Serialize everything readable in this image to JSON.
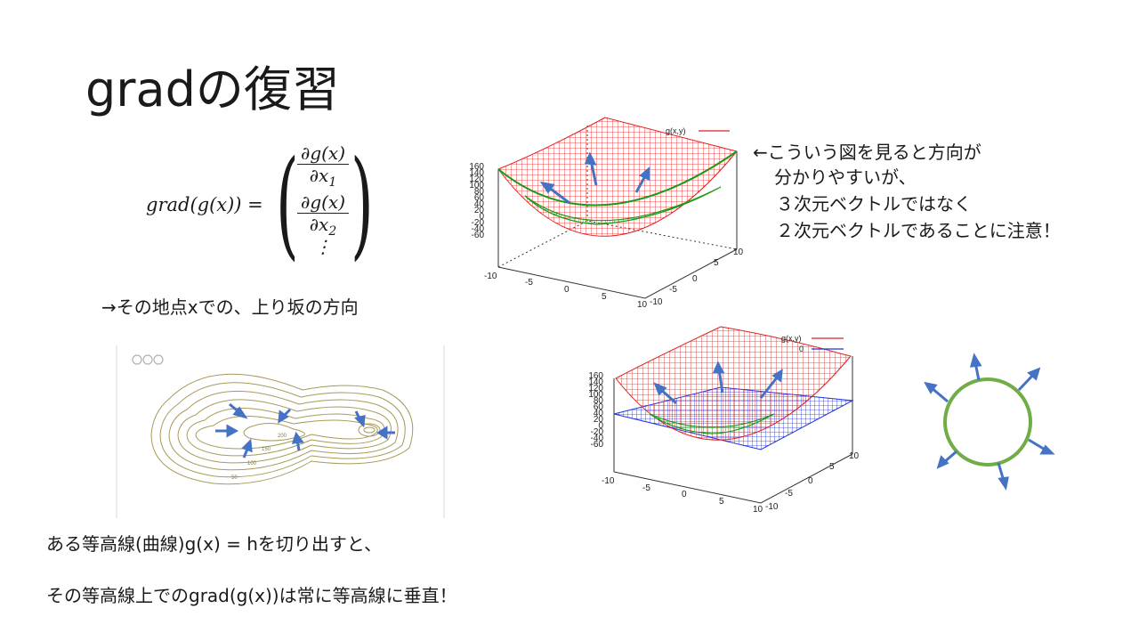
{
  "title": "gradの復習",
  "formula": {
    "lhs": "grad(g(x)) =",
    "row1_num": "∂g(x)",
    "row1_den": "∂x",
    "row1_sub": "1",
    "row2_num": "∂g(x)",
    "row2_den": "∂x",
    "row2_sub": "2",
    "row3": "⋮"
  },
  "arrow_note": "→その地点xでの、上り坂の方向",
  "side_note": [
    "←こういう図を見ると方向が",
    "分かりやすいが、",
    "３次元ベクトルではなく",
    "２次元ベクトルであることに注意！"
  ],
  "line1": "ある等高線(曲線)g(x) = hを切り出すと、",
  "line2": "その等高線上でのgrad(g(x))は常に等高線に垂直！",
  "plot_top": {
    "legend": "g(x,y)",
    "z_ticks": [
      "160",
      "140",
      "120",
      "100",
      "80",
      "60",
      "40",
      "20",
      "0",
      "-20",
      "-40",
      "-60"
    ],
    "x_ticks": [
      "-10",
      "-5",
      "0",
      "5",
      "10"
    ],
    "y_ticks": [
      "-10",
      "-5",
      "0",
      "5",
      "10"
    ]
  },
  "plot_bottom": {
    "legend1": "g(x,y)",
    "legend2": "0",
    "z_ticks": [
      "160",
      "140",
      "120",
      "100",
      "80",
      "60",
      "40",
      "20",
      "0",
      "-20",
      "-40",
      "-60"
    ],
    "x_ticks": [
      "-10",
      "-5",
      "0",
      "5",
      "10"
    ],
    "y_ticks": [
      "-10",
      "-5",
      "0",
      "5",
      "10"
    ]
  },
  "contour_labels": [
    "50",
    "100",
    "150",
    "200"
  ],
  "colors": {
    "red": "#e02020",
    "green": "#1a9a1a",
    "blue": "#2030e0",
    "arrow": "#4472c4",
    "circle": "#70ad47",
    "contour": "#a89a5a"
  },
  "icons": [
    "contour-map",
    "circle-normal-vectors"
  ]
}
